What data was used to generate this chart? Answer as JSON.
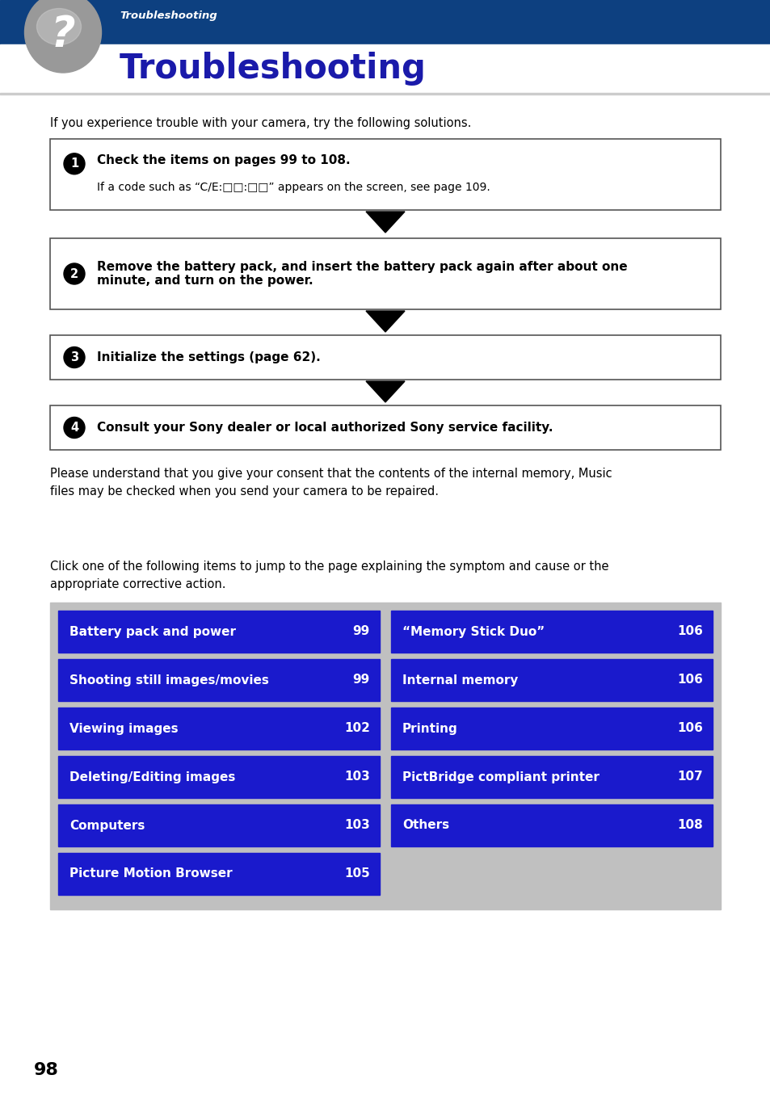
{
  "bg_color": "#ffffff",
  "header_bg": "#0d4080",
  "header_italic": "Troubleshooting",
  "header_title": "Troubleshooting",
  "header_title_color": "#1a1aaa",
  "intro_text": "If you experience trouble with your camera, try the following solutions.",
  "steps": [
    {
      "number": "1",
      "bold_text": "Check the items on pages 99 to 108.",
      "sub_text": "If a code such as “C/E:□□:□□” appears on the screen, see page 109."
    },
    {
      "number": "2",
      "bold_text": "Remove the battery pack, and insert the battery pack again after about one\nminute, and turn on the power.",
      "sub_text": ""
    },
    {
      "number": "3",
      "bold_text": "Initialize the settings (page 62).",
      "sub_text": ""
    },
    {
      "number": "4",
      "bold_text": "Consult your Sony dealer or local authorized Sony service facility.",
      "sub_text": ""
    }
  ],
  "footer_text": "Please understand that you give your consent that the contents of the internal memory, Music\nfiles may be checked when you send your camera to be repaired.",
  "click_text": "Click one of the following items to jump to the page explaining the symptom and cause or the\nappropriate corrective action.",
  "table_bg": "#c0c0c0",
  "cell_bg": "#1a1acc",
  "left_items": [
    {
      "label": "Battery pack and power",
      "page": "99"
    },
    {
      "label": "Shooting still images/movies",
      "page": "99"
    },
    {
      "label": "Viewing images",
      "page": "102"
    },
    {
      "label": "Deleting/Editing images",
      "page": "103"
    },
    {
      "label": "Computers",
      "page": "103"
    },
    {
      "label": "Picture Motion Browser",
      "page": "105"
    }
  ],
  "right_items": [
    {
      "label": "“Memory Stick Duo”",
      "page": "106"
    },
    {
      "label": "Internal memory",
      "page": "106"
    },
    {
      "label": "Printing",
      "page": "106"
    },
    {
      "label": "PictBridge compliant printer",
      "page": "107"
    },
    {
      "label": "Others",
      "page": "108"
    },
    {
      "label": "",
      "page": ""
    }
  ],
  "page_number": "98"
}
